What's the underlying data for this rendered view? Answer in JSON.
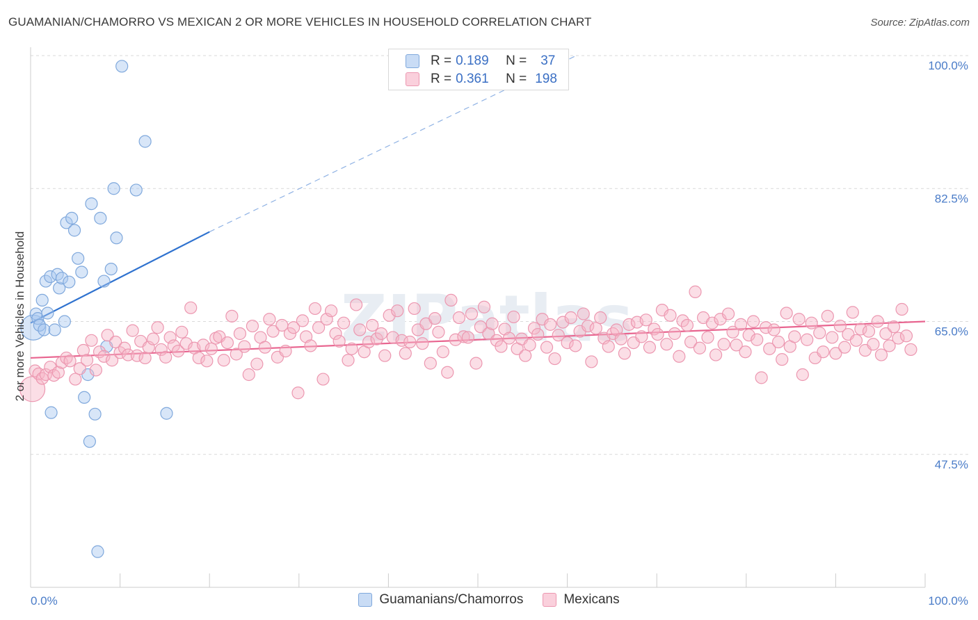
{
  "header": {
    "title": "GUAMANIAN/CHAMORRO VS MEXICAN 2 OR MORE VEHICLES IN HOUSEHOLD CORRELATION CHART",
    "source": "Source: ZipAtlas.com"
  },
  "legend": {
    "rows": [
      {
        "r_label": "R =",
        "r_value": "0.189",
        "n_label": "N =",
        "n_value": "37",
        "color": "#a9c8f0"
      },
      {
        "r_label": "R =",
        "r_value": "0.361",
        "n_label": "N =",
        "n_value": "198",
        "color": "#f6b6c8"
      }
    ]
  },
  "bottom_legend": [
    {
      "label": "Guamanians/Chamorros",
      "color": "#a9c8f0"
    },
    {
      "label": "Mexicans",
      "color": "#f6b6c8"
    }
  ],
  "chart_data": {
    "type": "scatter",
    "title": "GUAMANIAN/CHAMORRO VS MEXICAN 2 OR MORE VEHICLES IN HOUSEHOLD CORRELATION CHART",
    "ylabel": "2 or more Vehicles in Household",
    "xlabel": "",
    "xlim": [
      0,
      100
    ],
    "ylim": [
      30,
      100
    ],
    "y_ticks": [
      {
        "value": 100,
        "label": "100.0%"
      },
      {
        "value": 82.5,
        "label": "82.5%"
      },
      {
        "value": 65,
        "label": "65.0%"
      },
      {
        "value": 47.5,
        "label": "47.5%"
      }
    ],
    "x_ticks": [
      {
        "value": 0,
        "label": "0.0%"
      },
      {
        "value": 100,
        "label": "100.0%"
      }
    ],
    "grid": true,
    "series": [
      {
        "name": "Guamanians/Chamorros",
        "color": "#a9c8f0",
        "stroke": "#7fa8dc",
        "points": [
          [
            0.3,
            64.2
          ],
          [
            0.6,
            66.0
          ],
          [
            0.8,
            65.4
          ],
          [
            1.0,
            64.5
          ],
          [
            1.3,
            67.8
          ],
          [
            1.5,
            63.9
          ],
          [
            1.7,
            70.3
          ],
          [
            1.9,
            66.1
          ],
          [
            2.2,
            70.9
          ],
          [
            2.3,
            53.0
          ],
          [
            2.7,
            63.9
          ],
          [
            3.0,
            71.2
          ],
          [
            3.2,
            69.4
          ],
          [
            3.5,
            70.7
          ],
          [
            3.8,
            65.0
          ],
          [
            4.0,
            78.0
          ],
          [
            4.3,
            70.2
          ],
          [
            4.6,
            78.6
          ],
          [
            4.9,
            77.0
          ],
          [
            5.3,
            73.3
          ],
          [
            5.7,
            71.5
          ],
          [
            6.0,
            55.0
          ],
          [
            6.4,
            58.0
          ],
          [
            6.6,
            49.2
          ],
          [
            6.8,
            80.5
          ],
          [
            7.2,
            52.8
          ],
          [
            7.5,
            34.7
          ],
          [
            7.8,
            78.6
          ],
          [
            8.2,
            70.3
          ],
          [
            8.5,
            61.7
          ],
          [
            9.0,
            71.9
          ],
          [
            9.3,
            82.5
          ],
          [
            9.6,
            76.0
          ],
          [
            10.2,
            98.6
          ],
          [
            11.8,
            82.3
          ],
          [
            12.8,
            88.7
          ],
          [
            15.2,
            52.9
          ]
        ]
      },
      {
        "name": "Mexicans",
        "color": "#f6b6c8",
        "stroke": "#ec97b0",
        "points": [
          [
            0.2,
            56.1
          ],
          [
            0.5,
            58.5
          ],
          [
            0.9,
            58.1
          ],
          [
            1.3,
            57.5
          ],
          [
            1.7,
            58.0
          ],
          [
            2.2,
            59.0
          ],
          [
            2.6,
            57.9
          ],
          [
            3.1,
            58.3
          ],
          [
            3.5,
            59.6
          ],
          [
            4.0,
            60.2
          ],
          [
            4.4,
            59.8
          ],
          [
            5.0,
            57.4
          ],
          [
            5.5,
            58.8
          ],
          [
            5.9,
            61.2
          ],
          [
            6.3,
            59.9
          ],
          [
            6.8,
            62.5
          ],
          [
            7.3,
            58.6
          ],
          [
            7.7,
            61.0
          ],
          [
            8.2,
            60.4
          ],
          [
            8.6,
            63.2
          ],
          [
            9.1,
            59.9
          ],
          [
            9.5,
            62.3
          ],
          [
            10.0,
            60.9
          ],
          [
            10.5,
            61.5
          ],
          [
            10.9,
            60.6
          ],
          [
            11.4,
            63.8
          ],
          [
            11.9,
            60.5
          ],
          [
            12.3,
            62.4
          ],
          [
            12.8,
            60.2
          ],
          [
            13.2,
            61.6
          ],
          [
            13.7,
            62.7
          ],
          [
            14.2,
            64.2
          ],
          [
            14.6,
            61.3
          ],
          [
            15.1,
            60.3
          ],
          [
            15.6,
            62.9
          ],
          [
            16.0,
            61.8
          ],
          [
            16.5,
            61.1
          ],
          [
            16.9,
            63.6
          ],
          [
            17.4,
            62.1
          ],
          [
            17.9,
            66.8
          ],
          [
            18.3,
            61.5
          ],
          [
            18.8,
            60.2
          ],
          [
            19.3,
            61.9
          ],
          [
            19.7,
            59.8
          ],
          [
            20.2,
            61.4
          ],
          [
            20.7,
            62.8
          ],
          [
            21.1,
            63.0
          ],
          [
            21.6,
            59.9
          ],
          [
            22.0,
            62.2
          ],
          [
            22.5,
            65.7
          ],
          [
            23.0,
            60.7
          ],
          [
            23.4,
            63.4
          ],
          [
            23.9,
            61.7
          ],
          [
            24.4,
            58.0
          ],
          [
            24.8,
            64.4
          ],
          [
            25.3,
            59.4
          ],
          [
            25.7,
            62.9
          ],
          [
            26.2,
            61.6
          ],
          [
            26.7,
            65.3
          ],
          [
            27.1,
            63.7
          ],
          [
            27.6,
            60.3
          ],
          [
            28.1,
            64.5
          ],
          [
            28.5,
            61.1
          ],
          [
            29.0,
            63.4
          ],
          [
            29.4,
            64.2
          ],
          [
            29.9,
            55.6
          ],
          [
            30.4,
            65.1
          ],
          [
            30.8,
            63.0
          ],
          [
            31.3,
            61.8
          ],
          [
            31.8,
            66.7
          ],
          [
            32.2,
            64.2
          ],
          [
            32.7,
            57.4
          ],
          [
            33.1,
            65.3
          ],
          [
            33.6,
            66.4
          ],
          [
            34.1,
            63.4
          ],
          [
            34.5,
            62.4
          ],
          [
            35.0,
            64.8
          ],
          [
            35.5,
            59.9
          ],
          [
            35.9,
            61.4
          ],
          [
            36.4,
            67.2
          ],
          [
            36.8,
            63.9
          ],
          [
            37.3,
            61.0
          ],
          [
            37.8,
            62.3
          ],
          [
            38.2,
            64.5
          ],
          [
            38.7,
            62.7
          ],
          [
            39.2,
            63.4
          ],
          [
            39.6,
            60.5
          ],
          [
            40.1,
            65.8
          ],
          [
            40.5,
            62.9
          ],
          [
            41.0,
            66.4
          ],
          [
            41.5,
            62.5
          ],
          [
            41.9,
            60.8
          ],
          [
            42.4,
            62.3
          ],
          [
            42.9,
            66.7
          ],
          [
            43.3,
            63.9
          ],
          [
            43.8,
            62.1
          ],
          [
            44.2,
            64.7
          ],
          [
            44.7,
            59.5
          ],
          [
            45.2,
            65.4
          ],
          [
            45.6,
            63.6
          ],
          [
            46.1,
            61.0
          ],
          [
            46.6,
            58.3
          ],
          [
            47.0,
            67.8
          ],
          [
            47.5,
            62.6
          ],
          [
            47.9,
            65.5
          ],
          [
            48.4,
            63.0
          ],
          [
            48.9,
            62.9
          ],
          [
            49.3,
            66.0
          ],
          [
            49.8,
            59.5
          ],
          [
            50.3,
            64.3
          ],
          [
            50.7,
            66.9
          ],
          [
            51.2,
            63.4
          ],
          [
            51.6,
            64.7
          ],
          [
            52.1,
            62.5
          ],
          [
            52.6,
            61.7
          ],
          [
            53.0,
            64.0
          ],
          [
            53.5,
            62.8
          ],
          [
            54.0,
            65.6
          ],
          [
            54.4,
            61.4
          ],
          [
            54.9,
            62.7
          ],
          [
            55.3,
            60.5
          ],
          [
            55.8,
            61.9
          ],
          [
            56.3,
            64.1
          ],
          [
            56.7,
            63.3
          ],
          [
            57.2,
            65.3
          ],
          [
            57.7,
            61.6
          ],
          [
            58.1,
            64.6
          ],
          [
            58.6,
            60.1
          ],
          [
            59.0,
            63.2
          ],
          [
            59.5,
            64.9
          ],
          [
            60.0,
            62.2
          ],
          [
            60.4,
            65.5
          ],
          [
            60.9,
            61.8
          ],
          [
            61.4,
            63.7
          ],
          [
            61.8,
            66.0
          ],
          [
            62.3,
            64.4
          ],
          [
            62.7,
            59.7
          ],
          [
            63.2,
            64.1
          ],
          [
            63.7,
            65.5
          ],
          [
            64.1,
            62.8
          ],
          [
            64.6,
            61.7
          ],
          [
            65.1,
            63.4
          ],
          [
            65.5,
            63.9
          ],
          [
            66.0,
            62.7
          ],
          [
            66.4,
            60.8
          ],
          [
            66.9,
            64.6
          ],
          [
            67.4,
            62.2
          ],
          [
            67.8,
            64.9
          ],
          [
            68.3,
            63.0
          ],
          [
            68.8,
            65.2
          ],
          [
            69.2,
            61.6
          ],
          [
            69.7,
            64.0
          ],
          [
            70.1,
            63.3
          ],
          [
            70.6,
            66.5
          ],
          [
            71.1,
            62.0
          ],
          [
            71.5,
            65.8
          ],
          [
            72.0,
            63.4
          ],
          [
            72.5,
            60.4
          ],
          [
            72.9,
            65.1
          ],
          [
            73.4,
            64.5
          ],
          [
            73.8,
            62.3
          ],
          [
            74.3,
            68.9
          ],
          [
            74.8,
            61.5
          ],
          [
            75.2,
            65.5
          ],
          [
            75.7,
            62.9
          ],
          [
            76.2,
            64.8
          ],
          [
            76.6,
            60.6
          ],
          [
            77.1,
            65.3
          ],
          [
            77.5,
            62.0
          ],
          [
            78.0,
            66.0
          ],
          [
            78.5,
            63.6
          ],
          [
            78.9,
            61.9
          ],
          [
            79.4,
            64.6
          ],
          [
            79.9,
            61.0
          ],
          [
            80.3,
            63.2
          ],
          [
            80.8,
            65.0
          ],
          [
            81.2,
            62.6
          ],
          [
            81.7,
            57.6
          ],
          [
            82.2,
            64.2
          ],
          [
            82.6,
            61.4
          ],
          [
            83.1,
            63.9
          ],
          [
            83.6,
            62.3
          ],
          [
            84.0,
            60.0
          ],
          [
            84.5,
            66.1
          ],
          [
            84.9,
            61.7
          ],
          [
            85.4,
            63.0
          ],
          [
            85.9,
            65.3
          ],
          [
            86.3,
            58.0
          ],
          [
            86.8,
            62.6
          ],
          [
            87.3,
            64.8
          ],
          [
            87.7,
            60.2
          ],
          [
            88.2,
            63.5
          ],
          [
            88.6,
            61.0
          ],
          [
            89.1,
            65.7
          ],
          [
            89.6,
            62.9
          ],
          [
            90.0,
            60.8
          ],
          [
            90.5,
            64.4
          ],
          [
            91.0,
            61.6
          ],
          [
            91.4,
            63.3
          ],
          [
            91.9,
            66.2
          ],
          [
            92.3,
            62.5
          ],
          [
            92.8,
            64.0
          ],
          [
            93.3,
            61.2
          ],
          [
            93.7,
            63.7
          ],
          [
            94.2,
            62.0
          ],
          [
            94.7,
            65.0
          ],
          [
            95.1,
            60.6
          ],
          [
            95.6,
            63.4
          ],
          [
            96.0,
            61.8
          ],
          [
            96.5,
            64.3
          ],
          [
            97.0,
            62.8
          ],
          [
            97.4,
            66.6
          ],
          [
            97.9,
            63.1
          ],
          [
            98.4,
            61.3
          ]
        ]
      }
    ],
    "trend_lines": [
      {
        "series": "Guamanians/Chamorros",
        "x": [
          0,
          20
        ],
        "y": [
          64.8,
          76.8
        ],
        "dashed_extension_to": [
          61,
          100
        ]
      },
      {
        "series": "Mexicans",
        "x": [
          0,
          100
        ],
        "y": [
          60.2,
          65.0
        ]
      }
    ]
  }
}
